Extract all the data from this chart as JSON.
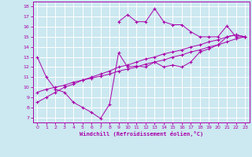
{
  "xlabel": "Windchill (Refroidissement éolien,°C)",
  "bg_color": "#cce8f0",
  "line_color": "#aa00aa",
  "grid_color": "#ffffff",
  "xlim": [
    -0.5,
    23.5
  ],
  "ylim": [
    6.5,
    18.5
  ],
  "xticks": [
    0,
    1,
    2,
    3,
    4,
    5,
    6,
    7,
    8,
    9,
    10,
    11,
    12,
    13,
    14,
    15,
    16,
    17,
    18,
    19,
    20,
    21,
    22,
    23
  ],
  "yticks": [
    7,
    8,
    9,
    10,
    11,
    12,
    13,
    14,
    15,
    16,
    17,
    18
  ],
  "line1_x": [
    0,
    1,
    2,
    3,
    4,
    5,
    6,
    7,
    8,
    9,
    10,
    11,
    12,
    13,
    14,
    15,
    16,
    17,
    18,
    19,
    20,
    21,
    22,
    23
  ],
  "line1_y": [
    13.0,
    11.0,
    9.8,
    9.5,
    8.5,
    8.0,
    7.5,
    6.9,
    8.3,
    13.4,
    12.0,
    12.1,
    12.0,
    12.5,
    12.0,
    12.2,
    12.0,
    12.5,
    13.5,
    13.8,
    14.2,
    15.0,
    15.2,
    15.0
  ],
  "line2_x": [
    0,
    1,
    2,
    3,
    4,
    5,
    6,
    7,
    8,
    9,
    10,
    11,
    12,
    13,
    14,
    15,
    16,
    17,
    18,
    19,
    20,
    21,
    22,
    23
  ],
  "line2_y": [
    9.5,
    9.8,
    10.0,
    10.2,
    10.5,
    10.7,
    10.9,
    11.1,
    11.3,
    11.6,
    11.8,
    12.0,
    12.3,
    12.5,
    12.7,
    13.0,
    13.2,
    13.5,
    13.7,
    14.0,
    14.2,
    14.5,
    14.8,
    15.0
  ],
  "line3_x": [
    9,
    10,
    11,
    12,
    13,
    14,
    15,
    16,
    17,
    18,
    19,
    20,
    21,
    22,
    23
  ],
  "line3_y": [
    16.5,
    17.2,
    16.5,
    16.5,
    17.8,
    16.5,
    16.2,
    16.2,
    15.5,
    15.0,
    15.0,
    15.0,
    16.1,
    15.0,
    15.0
  ],
  "line4_x": [
    0,
    1,
    2,
    3,
    4,
    5,
    6,
    7,
    8,
    9,
    10,
    11,
    12,
    13,
    14,
    15,
    16,
    17,
    18,
    19,
    20,
    21,
    22,
    23
  ],
  "line4_y": [
    8.5,
    9.0,
    9.5,
    10.0,
    10.3,
    10.7,
    11.0,
    11.3,
    11.6,
    12.0,
    12.2,
    12.5,
    12.8,
    13.0,
    13.3,
    13.5,
    13.7,
    14.0,
    14.2,
    14.5,
    14.7,
    15.0,
    15.2,
    15.0
  ]
}
